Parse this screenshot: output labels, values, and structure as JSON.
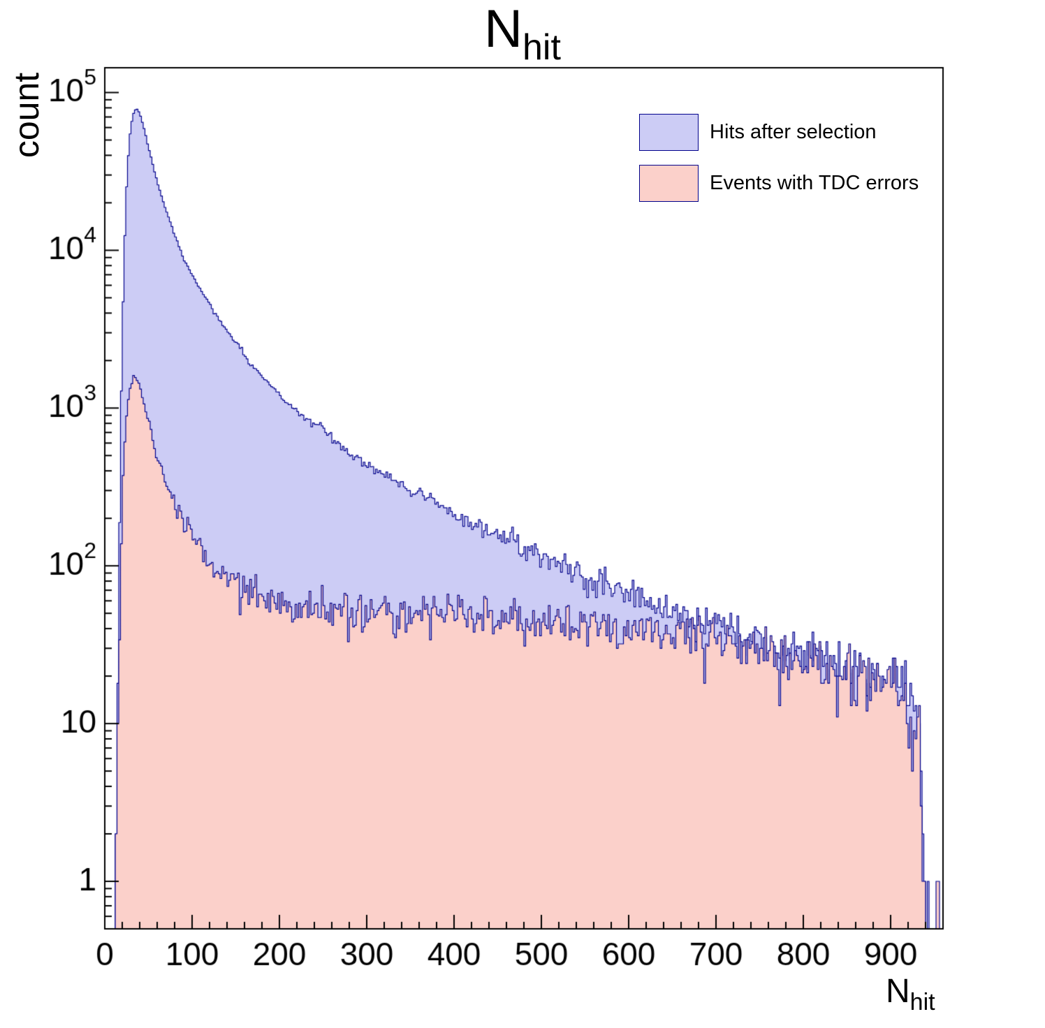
{
  "title": {
    "text": "N",
    "subscript": "hit"
  },
  "axes": {
    "y_title": "count",
    "x_title": {
      "text": "N",
      "subscript": "hit"
    }
  },
  "chart_data": {
    "type": "area",
    "histogram": true,
    "log_y": true,
    "title": "N_hit",
    "xlabel": "N_hit",
    "ylabel": "count",
    "x_range": [
      0,
      960
    ],
    "y_range": [
      0.5,
      143600
    ],
    "x_ticks": [
      0,
      100,
      200,
      300,
      400,
      500,
      600,
      700,
      800,
      900
    ],
    "y_ticks": [
      1,
      10,
      100,
      1000,
      10000,
      100000
    ],
    "bin_width": 2,
    "noise_seed": 7,
    "legend_position": "top-right",
    "grid": false,
    "series": [
      {
        "name": "Hits after selection",
        "fill": "#ccccf5",
        "line": "#00008b",
        "x": [
          10,
          14,
          16,
          18,
          20,
          24,
          28,
          32,
          36,
          40,
          44,
          50,
          56,
          62,
          70,
          80,
          90,
          100,
          110,
          120,
          135,
          150,
          165,
          180,
          200,
          220,
          240,
          260,
          280,
          300,
          320,
          340,
          360,
          380,
          400,
          420,
          440,
          460,
          480,
          500,
          520,
          540,
          560,
          580,
          600,
          620,
          640,
          660,
          680,
          700,
          720,
          740,
          760,
          780,
          800,
          820,
          840,
          860,
          880,
          900,
          915,
          925,
          932,
          936,
          940,
          948,
          960
        ],
        "y": [
          0.5,
          5,
          60,
          500,
          3000,
          20000,
          50000,
          72000,
          80000,
          74000,
          62000,
          45000,
          33000,
          25000,
          18000,
          12500,
          9000,
          7000,
          5600,
          4600,
          3400,
          2600,
          2000,
          1600,
          1200,
          950,
          780,
          640,
          530,
          440,
          380,
          330,
          290,
          250,
          215,
          185,
          165,
          148,
          128,
          112,
          100,
          90,
          81,
          73,
          66,
          60,
          55,
          50,
          46,
          42,
          38,
          35,
          32,
          30,
          28,
          26,
          24,
          22,
          21,
          20,
          17,
          14,
          9,
          4,
          0.4,
          0.15,
          0.05
        ]
      },
      {
        "name": "Events with TDC errors",
        "fill": "#fbd0ca",
        "line": "#00008b",
        "x": [
          10,
          14,
          16,
          18,
          20,
          24,
          28,
          32,
          36,
          40,
          44,
          50,
          56,
          62,
          70,
          80,
          90,
          100,
          110,
          120,
          135,
          150,
          165,
          180,
          200,
          220,
          240,
          260,
          280,
          300,
          320,
          340,
          360,
          380,
          400,
          420,
          440,
          460,
          480,
          500,
          520,
          540,
          560,
          580,
          600,
          620,
          640,
          660,
          680,
          700,
          720,
          740,
          760,
          780,
          800,
          820,
          840,
          860,
          880,
          900,
          915,
          925,
          932,
          936,
          940,
          948,
          960
        ],
        "y": [
          0.3,
          2,
          15,
          80,
          250,
          800,
          1250,
          1480,
          1550,
          1400,
          1150,
          820,
          600,
          450,
          330,
          250,
          195,
          160,
          130,
          110,
          90,
          76,
          68,
          62,
          58,
          55,
          53,
          52,
          51,
          52,
          53,
          53,
          52,
          51,
          50,
          49,
          48,
          47,
          46,
          45,
          44,
          43,
          43,
          42,
          42,
          41,
          40,
          39,
          38,
          36,
          34,
          31,
          29,
          27,
          26,
          24,
          22,
          21,
          20,
          19,
          16,
          13,
          8,
          4,
          0.4,
          0.15,
          0.05
        ]
      }
    ]
  }
}
